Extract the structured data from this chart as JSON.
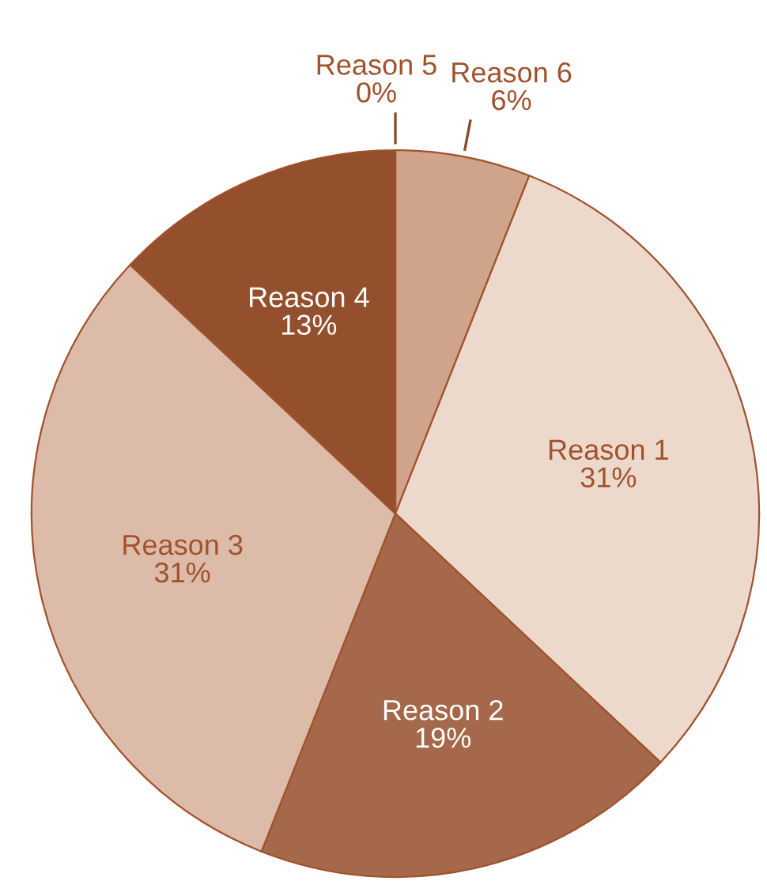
{
  "chart_data": {
    "type": "pie",
    "categories": [
      "Reason 6",
      "Reason 1",
      "Reason 2",
      "Reason 3",
      "Reason 4",
      "Reason 5"
    ],
    "values": [
      6,
      31,
      19,
      31,
      13,
      0
    ],
    "value_labels": [
      "6%",
      "31%",
      "19%",
      "31%",
      "13%",
      "0%"
    ],
    "colors": [
      "#cfa48a",
      "#ecd9cc",
      "#a5684a",
      "#dcbba8",
      "#944f2d",
      "#b97a58"
    ]
  }
}
